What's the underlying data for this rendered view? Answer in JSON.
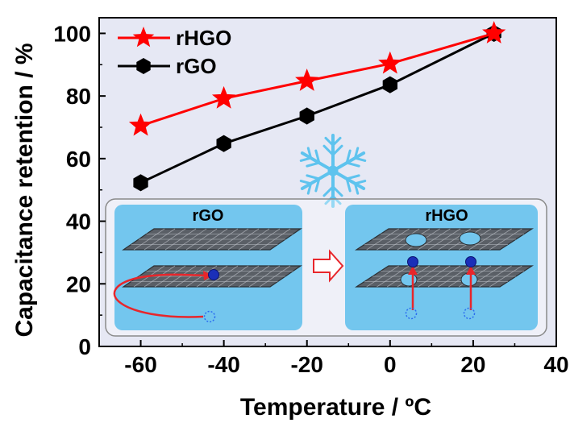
{
  "chart_data": {
    "type": "line",
    "xlabel": "Temperature / ºC",
    "ylabel": "Capacitance retention / %",
    "xlim": [
      -70,
      40
    ],
    "ylim": [
      0,
      105
    ],
    "x_ticks": [
      -60,
      -40,
      -20,
      0,
      20,
      40
    ],
    "y_ticks": [
      0,
      20,
      40,
      60,
      80,
      100
    ],
    "grid": false,
    "legend_position": "top-left",
    "series": [
      {
        "name": "rHGO",
        "marker": "star",
        "color": "#ff0000",
        "x": [
          -60,
          -40,
          -20,
          0,
          25
        ],
        "y": [
          70.5,
          79.2,
          84.8,
          90.3,
          100
        ]
      },
      {
        "name": "rGO",
        "marker": "hexagon",
        "color": "#000000",
        "x": [
          -60,
          -40,
          -20,
          0,
          25
        ],
        "y": [
          52.3,
          64.8,
          73.6,
          83.6,
          100
        ]
      }
    ],
    "inset": {
      "panels": [
        {
          "title": "rGO"
        },
        {
          "title": "rHGO"
        }
      ],
      "icon": "snowflake-icon",
      "colors": {
        "background": "#e6e8f4",
        "panel": "#73c6ee",
        "snowflake": "#5ec3ee",
        "ion": "#1a2fb8",
        "arrow": "#e8262b"
      }
    }
  }
}
